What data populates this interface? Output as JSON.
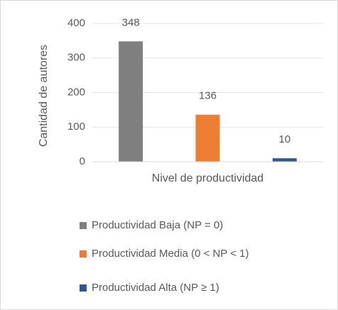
{
  "chart_data": {
    "type": "bar",
    "y_label": "Cantidad de autores",
    "categories": [
      "Nivel de productividad"
    ],
    "series": [
      {
        "name": "Productividad Baja (NP = 0)",
        "color": "#7f7f7f",
        "values": [
          348
        ]
      },
      {
        "name": "Productividad Media (0 < NP < 1)",
        "color": "#ed7d31",
        "values": [
          136
        ]
      },
      {
        "name": "Productividad Alta (NP ≥ 1)",
        "color": "#2f5597",
        "values": [
          10
        ]
      }
    ],
    "ylim": [
      0,
      400
    ],
    "yticks": [
      0,
      100,
      200,
      300,
      400
    ],
    "grid": true,
    "legend": "bottom"
  }
}
